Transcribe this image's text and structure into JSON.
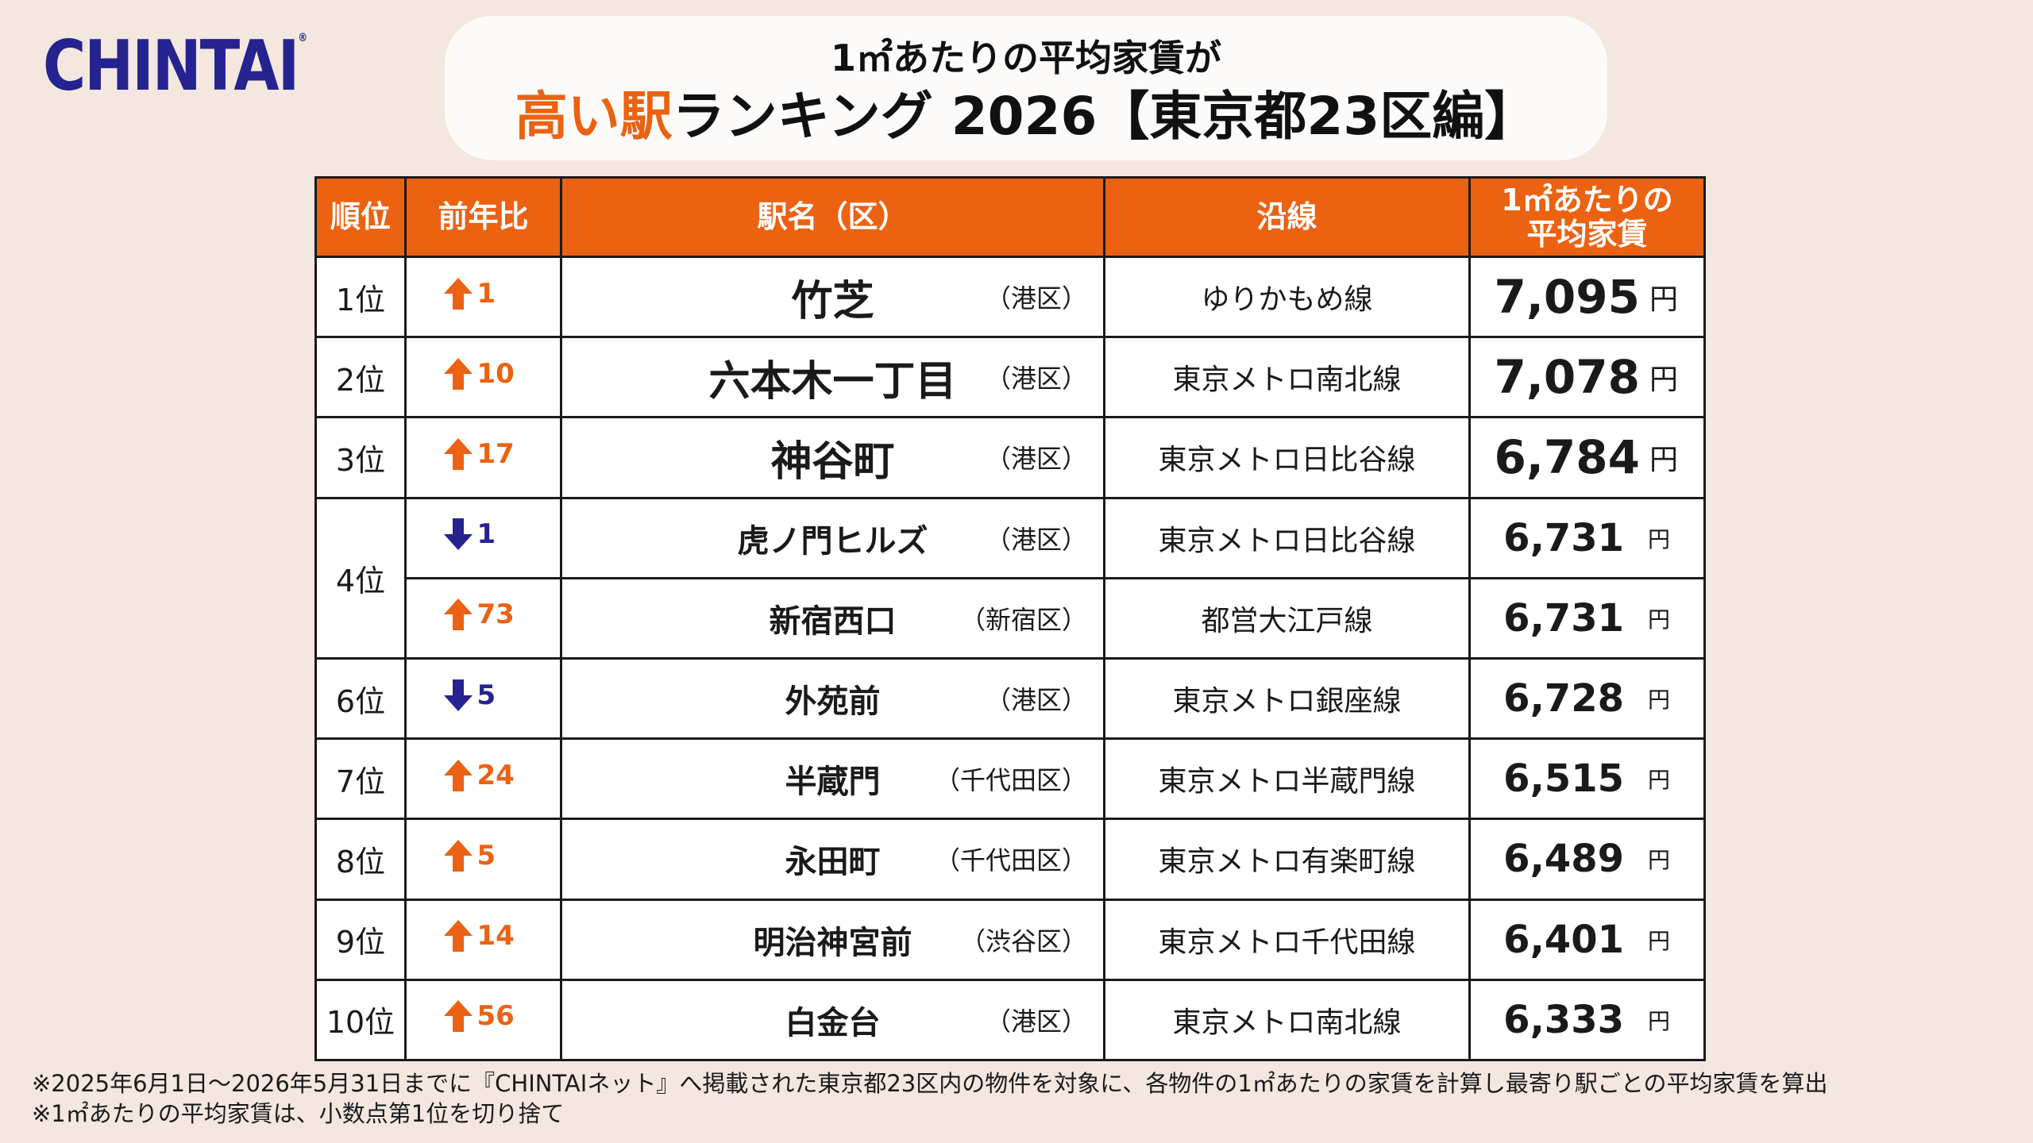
{
  "logo": {
    "text": "CHINTAI",
    "mark": "®"
  },
  "title": {
    "line1": "1㎡あたりの平均家賃が",
    "line2_highlight": "高い駅",
    "line2_rest": "ランキング 2026【東京都23区編】"
  },
  "table": {
    "headers": {
      "rank": "順位",
      "yoy": "前年比",
      "station": "駅名（区）",
      "line": "沿線",
      "price_l1": "1㎡あたりの",
      "price_l2": "平均家賃"
    },
    "rows": [
      {
        "rank": "1位",
        "yoy_dir": "up",
        "yoy": "1",
        "station": "竹芝",
        "ward": "（港区）",
        "line": "ゆりかもめ線",
        "price": "7,095",
        "unit": "円",
        "big": true
      },
      {
        "rank": "2位",
        "yoy_dir": "up",
        "yoy": "10",
        "station": "六本木一丁目",
        "ward": "（港区）",
        "line": "東京メトロ南北線",
        "price": "7,078",
        "unit": "円",
        "big": true
      },
      {
        "rank": "3位",
        "yoy_dir": "up",
        "yoy": "17",
        "station": "神谷町",
        "ward": "（港区）",
        "line": "東京メトロ日比谷線",
        "price": "6,784",
        "unit": "円",
        "big": true
      },
      {
        "rank": "4位",
        "yoy_dir": "down",
        "yoy": "1",
        "station": "虎ノ門ヒルズ",
        "ward": "（港区）",
        "line": "東京メトロ日比谷線",
        "price": "6,731",
        "unit": "円",
        "big": false
      },
      {
        "rank": "4位",
        "yoy_dir": "up",
        "yoy": "73",
        "station": "新宿西口",
        "ward": "（新宿区）",
        "line": "都営大江戸線",
        "price": "6,731",
        "unit": "円",
        "big": false
      },
      {
        "rank": "6位",
        "yoy_dir": "down",
        "yoy": "5",
        "station": "外苑前",
        "ward": "（港区）",
        "line": "東京メトロ銀座線",
        "price": "6,728",
        "unit": "円",
        "big": false
      },
      {
        "rank": "7位",
        "yoy_dir": "up",
        "yoy": "24",
        "station": "半蔵門",
        "ward": "（千代田区）",
        "line": "東京メトロ半蔵門線",
        "price": "6,515",
        "unit": "円",
        "big": false
      },
      {
        "rank": "8位",
        "yoy_dir": "up",
        "yoy": "5",
        "station": "永田町",
        "ward": "（千代田区）",
        "line": "東京メトロ有楽町線",
        "price": "6,489",
        "unit": "円",
        "big": false
      },
      {
        "rank": "9位",
        "yoy_dir": "up",
        "yoy": "14",
        "station": "明治神宮前",
        "ward": "（渋谷区）",
        "line": "東京メトロ千代田線",
        "price": "6,401",
        "unit": "円",
        "big": false
      },
      {
        "rank": "10位",
        "yoy_dir": "up",
        "yoy": "56",
        "station": "白金台",
        "ward": "（港区）",
        "line": "東京メトロ南北線",
        "price": "6,333",
        "unit": "円",
        "big": false
      }
    ]
  },
  "notes": [
    "※2025年6月1日〜2026年5月31日までに『CHINTAIネット』へ掲載された東京都23区内の物件を対象に、各物件の1㎡あたりの家賃を計算し最寄り駅ごとの平均家賃を算出",
    "※1㎡あたりの平均家賃は、小数点第1位を切り捨て"
  ],
  "colors": {
    "accent": "#ea6212",
    "brand": "#24238f",
    "up": "#ea6212",
    "down": "#24238f"
  }
}
